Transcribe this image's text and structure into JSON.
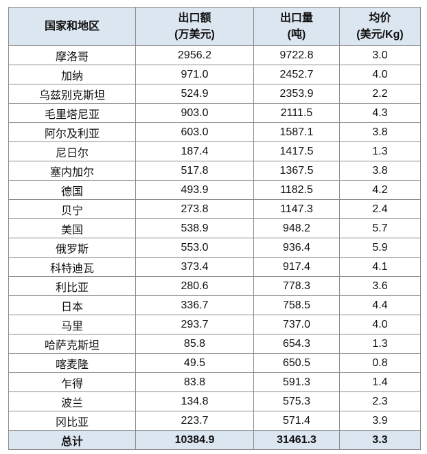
{
  "table": {
    "header": [
      [
        "国家和地区"
      ],
      [
        "出口额",
        "(万美元)"
      ],
      [
        "出口量",
        "(吨)"
      ],
      [
        "均价",
        "(美元/Kg)"
      ]
    ],
    "rows": [
      [
        "摩洛哥",
        "2956.2",
        "9722.8",
        "3.0"
      ],
      [
        "加纳",
        "971.0",
        "2452.7",
        "4.0"
      ],
      [
        "乌兹别克斯坦",
        "524.9",
        "2353.9",
        "2.2"
      ],
      [
        "毛里塔尼亚",
        "903.0",
        "2111.5",
        "4.3"
      ],
      [
        "阿尔及利亚",
        "603.0",
        "1587.1",
        "3.8"
      ],
      [
        "尼日尔",
        "187.4",
        "1417.5",
        "1.3"
      ],
      [
        "塞内加尔",
        "517.8",
        "1367.5",
        "3.8"
      ],
      [
        "德国",
        "493.9",
        "1182.5",
        "4.2"
      ],
      [
        "贝宁",
        "273.8",
        "1147.3",
        "2.4"
      ],
      [
        "美国",
        "538.9",
        "948.2",
        "5.7"
      ],
      [
        "俄罗斯",
        "553.0",
        "936.4",
        "5.9"
      ],
      [
        "科特迪瓦",
        "373.4",
        "917.4",
        "4.1"
      ],
      [
        "利比亚",
        "280.6",
        "778.3",
        "3.6"
      ],
      [
        "日本",
        "336.7",
        "758.5",
        "4.4"
      ],
      [
        "马里",
        "293.7",
        "737.0",
        "4.0"
      ],
      [
        "哈萨克斯坦",
        "85.8",
        "654.3",
        "1.3"
      ],
      [
        "喀麦隆",
        "49.5",
        "650.5",
        "0.8"
      ],
      [
        "乍得",
        "83.8",
        "591.3",
        "1.4"
      ],
      [
        "波兰",
        "134.8",
        "575.3",
        "2.3"
      ],
      [
        "冈比亚",
        "223.7",
        "571.4",
        "3.9"
      ]
    ],
    "total": [
      "总计",
      "10384.9",
      "31461.3",
      "3.3"
    ]
  }
}
